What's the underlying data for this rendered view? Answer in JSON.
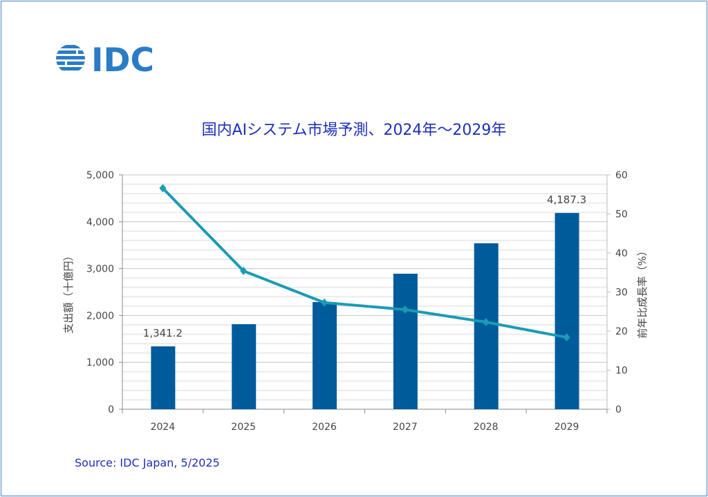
{
  "logo_text": "IDC",
  "colors": {
    "bar": "#005b9a",
    "line": "#1a9bb5",
    "title": "#1d2fb8",
    "logo": "#2a7cc7"
  },
  "chart_data": {
    "type": "bar+line",
    "title": "国内AIシステム市場予測、2024年～2029年",
    "categories": [
      "2024",
      "2025",
      "2026",
      "2027",
      "2028",
      "2029"
    ],
    "series": [
      {
        "name": "支出額",
        "type": "bar",
        "axis": "left",
        "values": [
          1341.2,
          1814,
          2286,
          2891,
          3540,
          4187.3
        ],
        "data_labels": {
          "0": "1,341.2",
          "5": "4,187.3"
        }
      },
      {
        "name": "前年比成長率",
        "type": "line",
        "axis": "right",
        "values": [
          56.6,
          35.4,
          27.3,
          25.5,
          22.3,
          18.4
        ]
      }
    ],
    "ylabel": "支出額（十億円）",
    "y2label": "前年比成長率（%）",
    "ylim": [
      0,
      5000
    ],
    "y2lim": [
      0,
      60
    ],
    "yticks": [
      "0",
      "1,000",
      "2,000",
      "3,000",
      "4,000",
      "5,000"
    ],
    "y2ticks": [
      "0",
      "10",
      "20",
      "30",
      "40",
      "50",
      "60"
    ],
    "grid": true,
    "legend": "none"
  },
  "source": "Source: IDC Japan, 5/2025"
}
